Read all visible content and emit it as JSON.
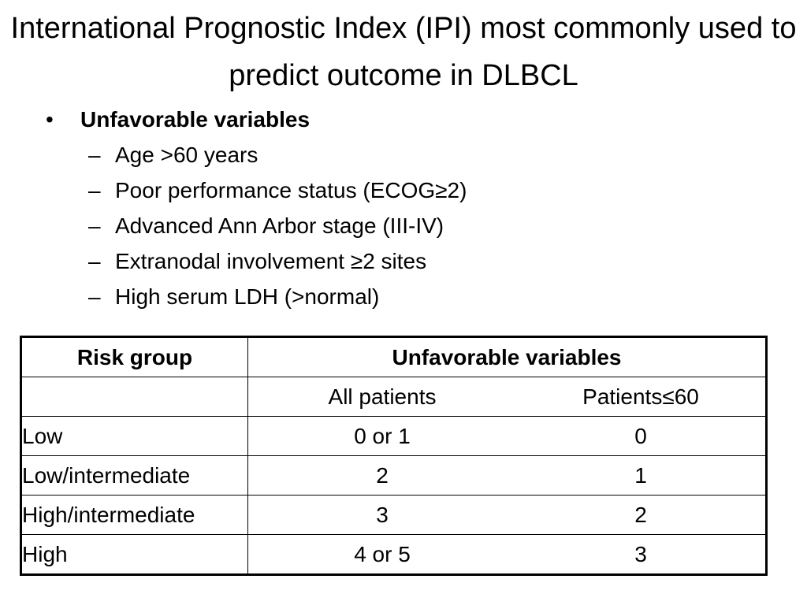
{
  "slide": {
    "title": "International Prognostic Index (IPI) most commonly used to predict outcome in DLBCL"
  },
  "bullets": {
    "symbol": "•",
    "dash": "–",
    "heading": "Unfavorable variables",
    "items": [
      "Age >60 years",
      "Poor performance status (ECOG≥2)",
      "Advanced Ann Arbor stage (III-IV)",
      "Extranodal involvement ≥2 sites",
      "High serum LDH (>normal)"
    ]
  },
  "table": {
    "header": {
      "risk_group": "Risk group",
      "unfavorable": "Unfavorable variables"
    },
    "subheader": {
      "all_patients": "All patients",
      "patients_le60": "Patients≤60"
    },
    "rows": [
      {
        "group": "Low",
        "all": "0 or 1",
        "le60": "0"
      },
      {
        "group": "Low/intermediate",
        "all": "2",
        "le60": "1"
      },
      {
        "group": "High/intermediate",
        "all": "3",
        "le60": "2"
      },
      {
        "group": "High",
        "all": "4 or 5",
        "le60": "3"
      }
    ]
  }
}
